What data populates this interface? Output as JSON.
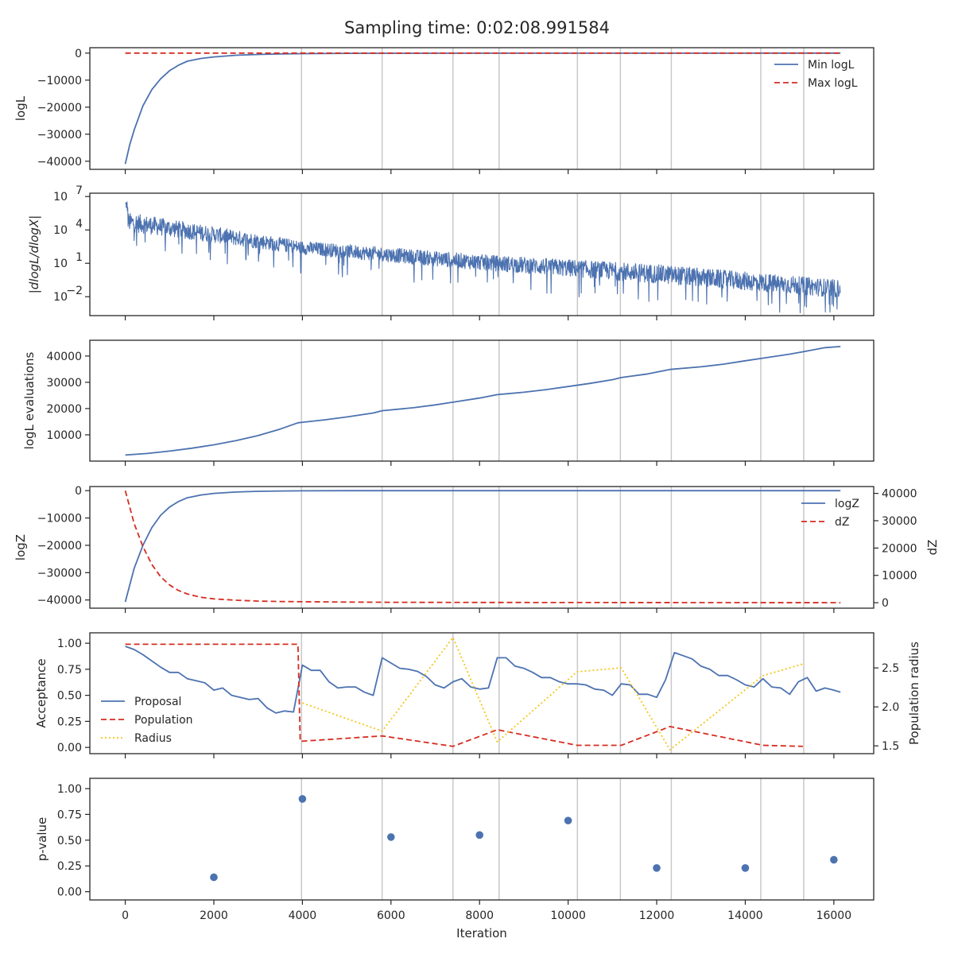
{
  "title": "Sampling time: 0:02:08.991584",
  "xlabel": "Iteration",
  "colors": {
    "blue": "#4c72b0",
    "red": "#d62d20",
    "yellow": "#f5c518",
    "grid": "#c8c8c8",
    "axis": "#262626"
  },
  "chart_data": [
    {
      "type": "line",
      "ylabel": "logL",
      "xlim": [
        -800,
        16900
      ],
      "ylim": [
        -43000,
        2000
      ],
      "yticks": [
        0,
        -10000,
        -20000,
        -30000,
        -40000
      ],
      "ytick_labels": [
        "0",
        "−10000",
        "−20000",
        "−30000",
        "−40000"
      ],
      "legend": "top-right",
      "series": [
        {
          "name": "Min logL",
          "style": "solid",
          "color": "#4c72b0",
          "x": [
            0,
            100,
            200,
            400,
            600,
            800,
            1000,
            1200,
            1400,
            1700,
            2000,
            2500,
            3000,
            3500,
            4000,
            5000,
            6000,
            8000,
            10000,
            16150
          ],
          "y": [
            -41000,
            -34000,
            -28500,
            -19500,
            -13500,
            -9500,
            -6500,
            -4500,
            -3000,
            -2000,
            -1400,
            -800,
            -500,
            -300,
            -200,
            -100,
            -60,
            -30,
            -15,
            -5
          ]
        },
        {
          "name": "Max logL",
          "style": "dashed",
          "color": "#d62d20",
          "x": [
            0,
            16150
          ],
          "y": [
            0,
            0
          ]
        }
      ]
    },
    {
      "type": "line",
      "ylabel": "|dlogL/dlogX|",
      "yscale": "log",
      "ylim": [
        -3.7,
        7.3
      ],
      "yticks": [
        7,
        4,
        1,
        -2
      ],
      "ytick_bases": [
        "10",
        "10",
        "10",
        "10"
      ],
      "ytick_exps": [
        "7",
        "4",
        "1",
        "−2"
      ],
      "trend": {
        "x": [
          0,
          4000,
          8000,
          12000,
          16150
        ],
        "upper_log10": [
          5.6,
          3.0,
          1.8,
          0.9,
          -0.5
        ],
        "lower_log10": [
          3.9,
          1.8,
          0.4,
          -0.8,
          -2.1
        ]
      },
      "series": [
        {
          "name": "",
          "style": "solid",
          "color": "#4c72b0"
        }
      ]
    },
    {
      "type": "line",
      "ylabel": "logL evaluations",
      "ylim": [
        0,
        46000
      ],
      "yticks": [
        10000,
        20000,
        30000,
        40000
      ],
      "ytick_labels": [
        "10000",
        "20000",
        "30000",
        "40000"
      ],
      "series": [
        {
          "name": "",
          "style": "solid",
          "color": "#4c72b0",
          "x": [
            0,
            500,
            1000,
            1500,
            2000,
            2500,
            3000,
            3500,
            3900,
            4500,
            5000,
            5600,
            5800,
            6500,
            7000,
            7500,
            8000,
            8400,
            9000,
            9500,
            10000,
            10500,
            11000,
            11200,
            11800,
            12300,
            13000,
            13500,
            14000,
            14400,
            15000,
            15300,
            15800,
            16150
          ],
          "y": [
            2300,
            2900,
            3800,
            4900,
            6200,
            7800,
            9700,
            12200,
            14600,
            15700,
            16800,
            18300,
            19200,
            20300,
            21400,
            22700,
            24000,
            25300,
            26200,
            27200,
            28400,
            29600,
            31000,
            31800,
            33200,
            34900,
            35900,
            36900,
            38200,
            39200,
            40700,
            41600,
            43200,
            43600
          ]
        }
      ]
    },
    {
      "type": "line",
      "ylabel": "logZ",
      "ylabel_right": "dZ",
      "ylim": [
        -43000,
        1500
      ],
      "yticks": [
        0,
        -10000,
        -20000,
        -30000,
        -40000
      ],
      "ytick_labels": [
        "0",
        "−10000",
        "−20000",
        "−30000",
        "−40000"
      ],
      "y2lim": [
        -2000,
        42500
      ],
      "y2ticks": [
        0,
        10000,
        20000,
        30000,
        40000
      ],
      "y2tick_labels": [
        "0",
        "10000",
        "20000",
        "30000",
        "40000"
      ],
      "legend": "top-right",
      "series": [
        {
          "name": "logZ",
          "style": "solid",
          "color": "#4c72b0",
          "axis": "left",
          "x": [
            0,
            200,
            400,
            600,
            800,
            1000,
            1200,
            1400,
            1700,
            2000,
            2500,
            3000,
            3500,
            4000,
            5000,
            6000,
            8000,
            16150
          ],
          "y": [
            -40700,
            -28500,
            -20000,
            -13500,
            -9000,
            -6000,
            -4000,
            -2600,
            -1600,
            -1000,
            -500,
            -250,
            -120,
            -60,
            -20,
            -8,
            -4,
            -1
          ]
        },
        {
          "name": "dZ",
          "style": "dashed",
          "color": "#d62d20",
          "axis": "right",
          "x": [
            0,
            200,
            400,
            600,
            800,
            1000,
            1200,
            1400,
            1700,
            2000,
            2500,
            3000,
            3500,
            4000,
            5000,
            6000,
            8000,
            16150
          ],
          "y": [
            41000,
            29000,
            20500,
            14000,
            9500,
            6500,
            4500,
            3200,
            2000,
            1400,
            900,
            600,
            450,
            350,
            250,
            150,
            80,
            20
          ]
        }
      ]
    },
    {
      "type": "line",
      "ylabel": "Acceptance",
      "ylabel_right": "Population radius",
      "ylim": [
        -0.06,
        1.1
      ],
      "yticks": [
        0.0,
        0.25,
        0.5,
        0.75,
        1.0
      ],
      "ytick_labels": [
        "0.00",
        "0.25",
        "0.50",
        "0.75",
        "1.00"
      ],
      "y2lim": [
        1.4,
        2.95
      ],
      "y2ticks": [
        1.5,
        2.0,
        2.5
      ],
      "y2tick_labels": [
        "1.5",
        "2.0",
        "2.5"
      ],
      "legend": "center-left",
      "series": [
        {
          "name": "Proposal",
          "style": "solid",
          "color": "#4c72b0",
          "axis": "left",
          "x": [
            0,
            200,
            400,
            600,
            800,
            1000,
            1200,
            1400,
            1600,
            1800,
            2000,
            2200,
            2400,
            2600,
            2800,
            3000,
            3200,
            3400,
            3600,
            3800,
            4000,
            4200,
            4400,
            4600,
            4800,
            5000,
            5200,
            5400,
            5600,
            5800,
            6000,
            6200,
            6400,
            6600,
            6800,
            7000,
            7200,
            7400,
            7600,
            7800,
            8000,
            8200,
            8400,
            8600,
            8800,
            9000,
            9200,
            9400,
            9600,
            9800,
            10000,
            10200,
            10400,
            10600,
            10800,
            11000,
            11200,
            11400,
            11600,
            11800,
            12000,
            12200,
            12400,
            12600,
            12800,
            13000,
            13200,
            13400,
            13600,
            13800,
            14000,
            14200,
            14400,
            14600,
            14800,
            15000,
            15200,
            15400,
            15600,
            15800,
            16000,
            16150
          ],
          "y": [
            0.97,
            0.94,
            0.89,
            0.83,
            0.77,
            0.72,
            0.72,
            0.66,
            0.64,
            0.62,
            0.55,
            0.57,
            0.5,
            0.48,
            0.46,
            0.47,
            0.38,
            0.33,
            0.35,
            0.34,
            0.79,
            0.74,
            0.74,
            0.63,
            0.57,
            0.58,
            0.58,
            0.53,
            0.5,
            0.86,
            0.81,
            0.76,
            0.75,
            0.73,
            0.68,
            0.6,
            0.57,
            0.63,
            0.66,
            0.58,
            0.56,
            0.57,
            0.86,
            0.86,
            0.78,
            0.76,
            0.72,
            0.67,
            0.67,
            0.63,
            0.61,
            0.61,
            0.6,
            0.56,
            0.55,
            0.5,
            0.61,
            0.6,
            0.51,
            0.51,
            0.48,
            0.65,
            0.91,
            0.88,
            0.85,
            0.78,
            0.75,
            0.69,
            0.69,
            0.65,
            0.6,
            0.58,
            0.66,
            0.58,
            0.57,
            0.51,
            0.63,
            0.67,
            0.54,
            0.57,
            0.55,
            0.53
          ]
        },
        {
          "name": "Population",
          "style": "dashed",
          "color": "#d62d20",
          "axis": "left",
          "x": [
            0,
            3900,
            3950,
            4000,
            5800,
            7400,
            8400,
            10200,
            11200,
            12300,
            14400,
            15300
          ],
          "y": [
            0.99,
            0.99,
            0.06,
            0.06,
            0.11,
            0.01,
            0.17,
            0.02,
            0.02,
            0.2,
            0.02,
            0.01
          ]
        },
        {
          "name": "Radius",
          "style": "dotted",
          "color": "#f5c518",
          "axis": "right",
          "x": [
            4000,
            5800,
            7400,
            8400,
            10200,
            11200,
            12300,
            14400,
            15300
          ],
          "y": [
            2.05,
            1.69,
            2.89,
            1.55,
            2.45,
            2.5,
            1.45,
            2.4,
            2.55
          ]
        }
      ]
    },
    {
      "type": "scatter",
      "ylabel": "p-value",
      "ylim": [
        -0.08,
        1.1
      ],
      "yticks": [
        0.0,
        0.25,
        0.5,
        0.75,
        1.0
      ],
      "ytick_labels": [
        "0.00",
        "0.25",
        "0.50",
        "0.75",
        "1.00"
      ],
      "series": [
        {
          "name": "",
          "color": "#4c72b0",
          "x": [
            2000,
            4000,
            6000,
            8000,
            10000,
            12000,
            14000,
            16000
          ],
          "y": [
            0.14,
            0.9,
            0.53,
            0.55,
            0.69,
            0.23,
            0.23,
            0.31
          ]
        }
      ]
    }
  ],
  "shared_x": {
    "xlim": [
      -800,
      16900
    ],
    "xticks": [
      0,
      2000,
      4000,
      6000,
      8000,
      10000,
      12000,
      14000,
      16000
    ],
    "xtick_labels": [
      "0",
      "2000",
      "4000",
      "6000",
      "8000",
      "10000",
      "12000",
      "14000",
      "16000"
    ],
    "vlines": [
      3980,
      5800,
      7400,
      8440,
      10210,
      11180,
      12330,
      14350,
      15320
    ]
  }
}
